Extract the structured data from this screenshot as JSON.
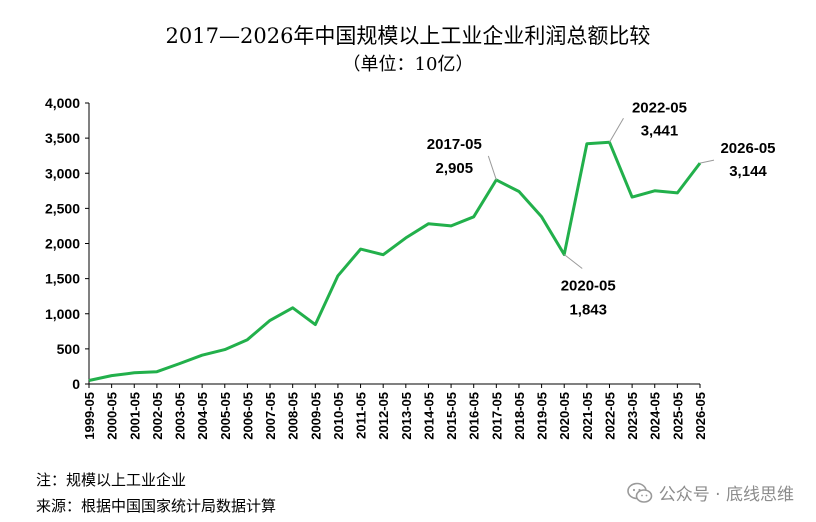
{
  "title": "2017—2026年中国规模以上工业企业利润总额比较",
  "subtitle": "（单位：10亿）",
  "notes": {
    "note": "注：规模以上工业企业",
    "source": "来源：根据中国国家统计局数据计算"
  },
  "watermark": {
    "text": "公众号 · 底线思维",
    "icon": "wechat-icon"
  },
  "chart_data": {
    "type": "line",
    "categories": [
      "1999-05",
      "2000-05",
      "2001-05",
      "2002-05",
      "2003-05",
      "2004-05",
      "2005-05",
      "2006-05",
      "2007-05",
      "2008-05",
      "2009-05",
      "2010-05",
      "2011-05",
      "2012-05",
      "2013-05",
      "2014-05",
      "2015-05",
      "2016-05",
      "2017-05",
      "2018-05",
      "2019-05",
      "2020-05",
      "2021-05",
      "2022-05",
      "2023-05",
      "2024-05",
      "2025-05",
      "2026-05"
    ],
    "series": [
      {
        "color": "#22b04b",
        "values": [
          50,
          120,
          160,
          175,
          290,
          410,
          490,
          630,
          905,
          1085,
          845,
          1540,
          1920,
          1840,
          2080,
          2280,
          2250,
          2380,
          2905,
          2740,
          2380,
          1843,
          3420,
          3441,
          2660,
          2750,
          2720,
          3144
        ]
      }
    ],
    "ylim": [
      0,
      4000
    ],
    "yticks": [
      0,
      500,
      1000,
      1500,
      2000,
      2500,
      3000,
      3500,
      4000
    ],
    "ytick_labels": [
      "0",
      "500",
      "1,000",
      "1,500",
      "2,000",
      "2,500",
      "3,000",
      "3,500",
      "4,000"
    ],
    "grid": false,
    "legend": "none",
    "annotations": [
      {
        "category": "2017-05",
        "label": "2017-05",
        "value_label": "2,905"
      },
      {
        "category": "2020-05",
        "label": "2020-05",
        "value_label": "1,843"
      },
      {
        "category": "2022-05",
        "label": "2022-05",
        "value_label": "3,441"
      },
      {
        "category": "2026-05",
        "label": "2026-05",
        "value_label": "3,144"
      }
    ]
  }
}
